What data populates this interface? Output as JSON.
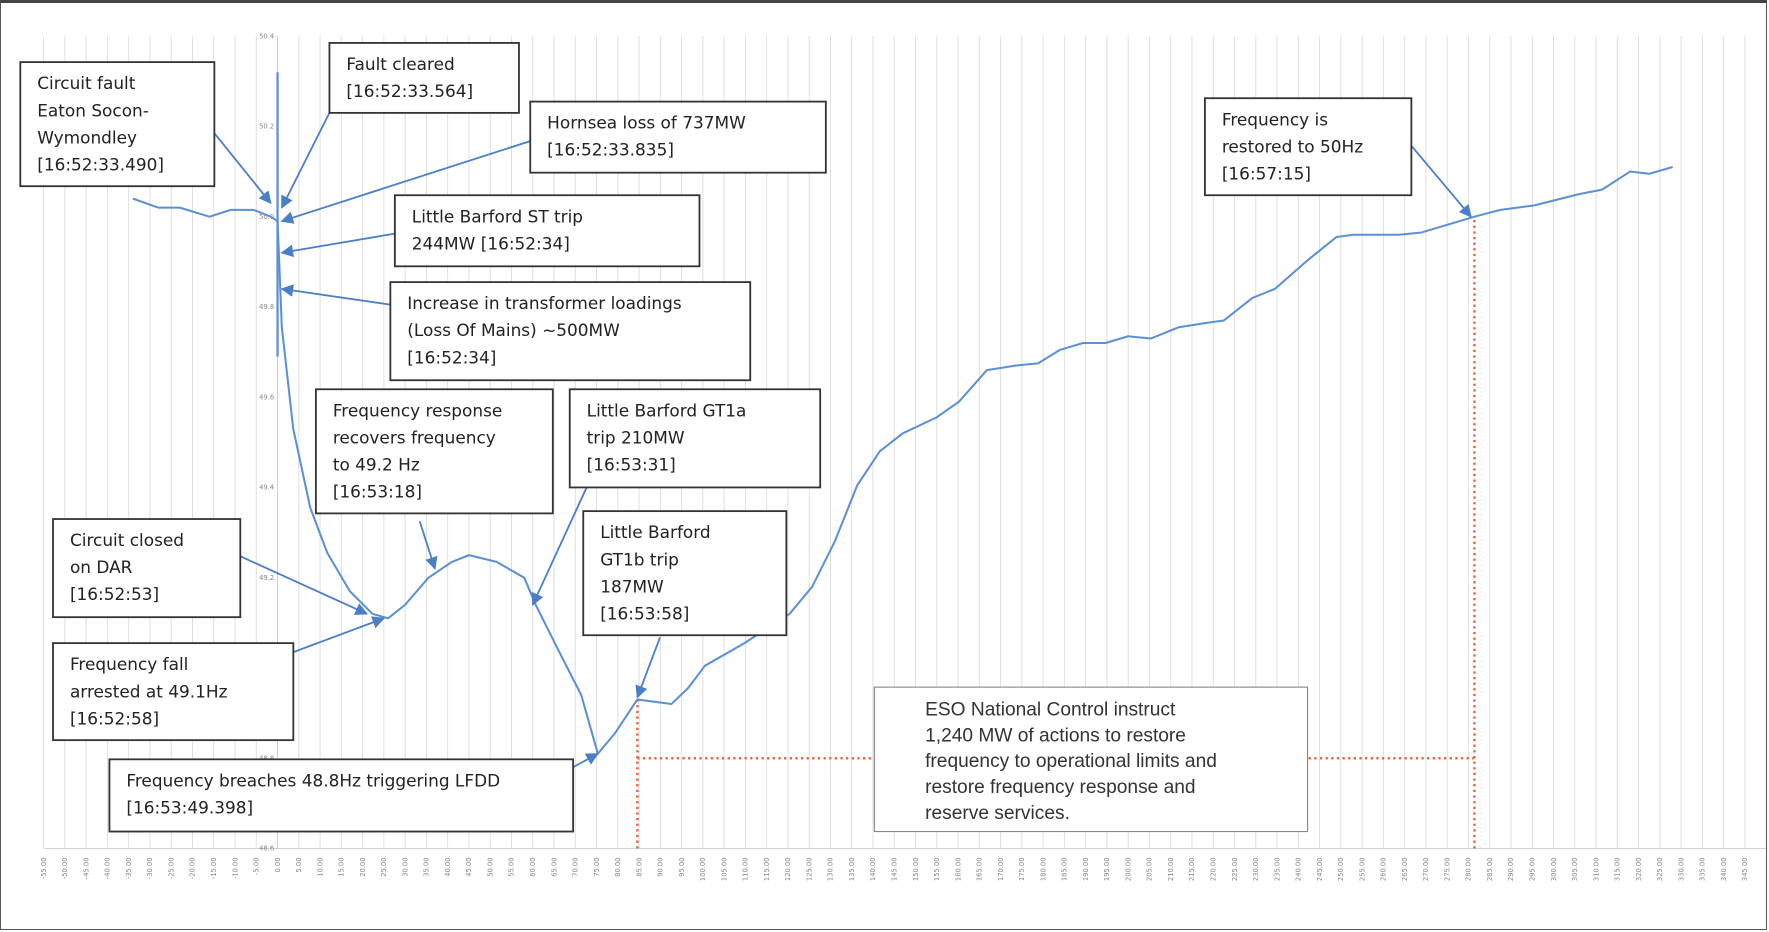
{
  "chart_data": {
    "type": "line",
    "title": "",
    "xlabel": "",
    "ylabel": "",
    "xlim": [
      -55,
      350
    ],
    "ylim": [
      48.6,
      50.4
    ],
    "x_tick_step": 5,
    "y_ticks": [
      "50.4",
      "50.2",
      "50.0",
      "49.8",
      "49.6",
      "49.4",
      "49.2",
      "49.0",
      "48.8",
      "48.6"
    ],
    "grid": "vertical",
    "legend": "none",
    "colors": {
      "series": "#5b8fd6",
      "reference": "#f0643c",
      "arrow": "#4a7fc8"
    },
    "series": [
      {
        "x": [
          -34,
          -28,
          -23,
          -16,
          -11,
          -5.6,
          -1.6,
          0,
          1,
          3.7,
          7.7,
          11.7,
          17,
          22.3,
          26,
          30,
          35.5,
          41,
          45,
          51.5,
          58,
          60.7,
          66,
          71.4,
          75.3,
          79.3,
          84.6,
          88.6,
          92.6,
          96.5,
          100.5,
          109.8,
          120.4,
          125.7,
          131,
          136.3,
          141.6,
          147,
          154.9,
          160.2,
          166.8,
          173.5,
          178.8,
          184,
          189.4,
          194.7,
          200,
          205.3,
          211.9,
          218.6,
          222.5,
          229.2,
          234.5,
          242.4,
          249,
          253,
          263.6,
          269,
          274.3,
          281.4,
          287.5,
          295.5,
          306,
          311.4,
          318,
          322.5,
          328
        ],
        "y": [
          50.04,
          50.02,
          50.02,
          50.0,
          50.015,
          50.015,
          50.0,
          49.99,
          49.755,
          49.53,
          49.355,
          49.255,
          49.17,
          49.12,
          49.11,
          49.14,
          49.2,
          49.235,
          49.25,
          49.235,
          49.2,
          49.14,
          49.04,
          48.94,
          48.81,
          48.855,
          48.93,
          48.925,
          48.92,
          48.955,
          49.005,
          49.055,
          49.12,
          49.18,
          49.28,
          49.405,
          49.48,
          49.52,
          49.555,
          49.59,
          49.66,
          49.67,
          49.675,
          49.705,
          49.72,
          49.72,
          49.735,
          49.73,
          49.755,
          49.765,
          49.77,
          49.82,
          49.84,
          49.905,
          49.955,
          49.96,
          49.96,
          49.965,
          49.98,
          50.0,
          50.015,
          50.025,
          50.05,
          50.06,
          50.1,
          50.095,
          50.11
        ]
      }
    ],
    "transient_spike": {
      "x": 0,
      "y_min": 49.69,
      "y_max": 50.32
    },
    "reference_lines": [
      {
        "kind": "vertical",
        "x": 281.4,
        "y_from": 48.6,
        "y_to": 50.0
      },
      {
        "kind": "vertical",
        "x": 84.6,
        "y_from": 48.6,
        "y_to": 48.93
      },
      {
        "kind": "horizontal",
        "y": 48.8,
        "x_from": 84.6,
        "x_to": 281.4
      }
    ],
    "annotations": [
      {
        "lines": [
          "Circuit fault",
          "Eaton Socon-",
          "Wymondley",
          "[16:52:33.490]"
        ],
        "x": -1.6,
        "y": 50.03
      },
      {
        "lines": [
          "Fault cleared",
          "[16:52:33.564]"
        ],
        "x": 1,
        "y": 50.02
      },
      {
        "lines": [
          "Hornsea loss of 737MW",
          "[16:52:33.835]"
        ],
        "x": 1,
        "y": 49.99
      },
      {
        "lines": [
          "Little Barford ST trip",
          "244MW [16:52:34]"
        ],
        "x": 1,
        "y": 49.92
      },
      {
        "lines": [
          "Increase in transformer loadings",
          "(Loss Of Mains) ~500MW",
          "[16:52:34]"
        ],
        "x": 1,
        "y": 49.84
      },
      {
        "lines": [
          "Frequency response",
          "recovers frequency",
          "to 49.2 Hz",
          "[16:53:18]"
        ],
        "x": 37,
        "y": 49.22
      },
      {
        "lines": [
          "Little Barford GT1a",
          "trip 210MW",
          "[16:53:31]"
        ],
        "x": 60,
        "y": 49.14
      },
      {
        "lines": [
          "Little Barford",
          "GT1b trip",
          "187MW",
          "[16:53:58]"
        ],
        "x": 84.6,
        "y": 48.935
      },
      {
        "lines": [
          "Circuit closed",
          "on DAR",
          "[16:52:53]"
        ],
        "x": 21,
        "y": 49.12
      },
      {
        "lines": [
          "Frequency fall",
          "arrested at 49.1Hz",
          "[16:52:58]"
        ],
        "x": 25,
        "y": 49.11
      },
      {
        "lines": [
          "Frequency breaches 48.8Hz triggering LFDD",
          "[16:53:49.398]"
        ],
        "x": 75.3,
        "y": 48.81
      },
      {
        "lines": [
          "Frequency is",
          "restored to 50Hz",
          "[16:57:15]"
        ],
        "x": 280.6,
        "y": 50.0
      }
    ],
    "note_box": {
      "lines": [
        "ESO National Control instruct",
        "1,240 MW of actions to restore",
        "frequency to operational limits and",
        "restore frequency response and",
        "reserve services."
      ]
    }
  }
}
